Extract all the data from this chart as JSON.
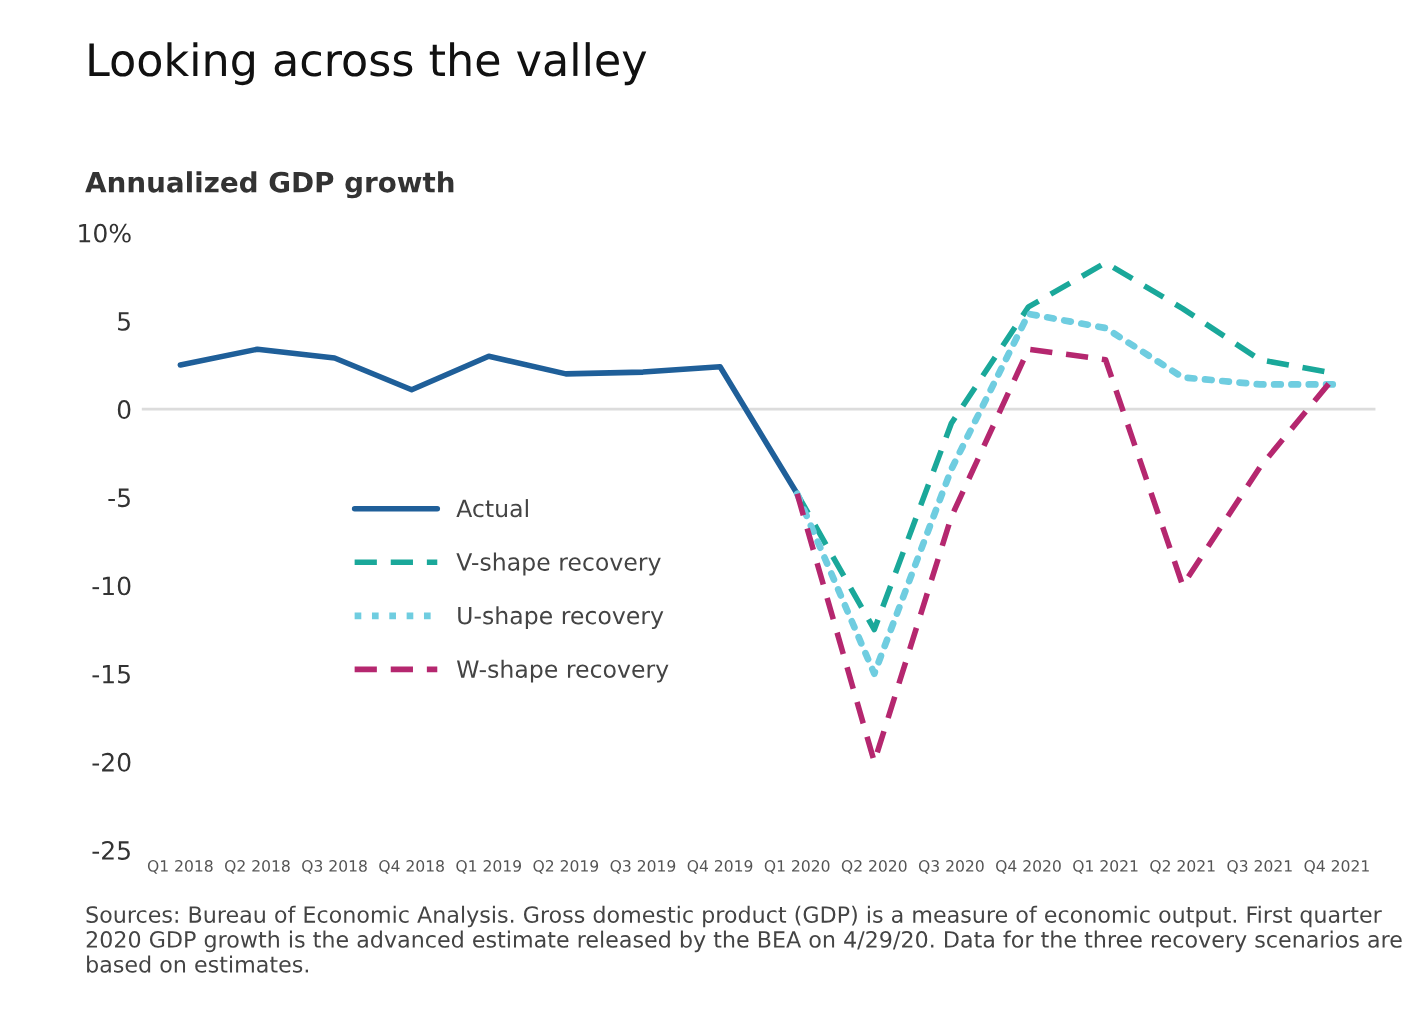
{
  "chart_data": {
    "type": "line",
    "title": "Looking across the valley",
    "subtitle": "Annualized GDP growth",
    "categories": [
      "Q1 2018",
      "Q2 2018",
      "Q3 2018",
      "Q4 2018",
      "Q1 2019",
      "Q2 2019",
      "Q3 2019",
      "Q4 2019",
      "Q1 2020",
      "Q2 2020",
      "Q3 2020",
      "Q4 2020",
      "Q1 2021",
      "Q2 2021",
      "Q3 2021",
      "Q4 2021"
    ],
    "series": [
      {
        "name": "Actual",
        "color": "#1f5f99",
        "line_style": "solid",
        "values": [
          2.5,
          3.4,
          2.9,
          1.1,
          3.0,
          2.0,
          2.1,
          2.4,
          -4.8,
          null,
          null,
          null,
          null,
          null,
          null,
          null
        ]
      },
      {
        "name": "V-shape recovery",
        "color": "#1aa89a",
        "line_style": "dashed",
        "values": [
          null,
          null,
          null,
          null,
          null,
          null,
          null,
          null,
          -4.8,
          -12.5,
          -0.8,
          5.8,
          8.3,
          5.7,
          2.8,
          2.0
        ]
      },
      {
        "name": "U-shape recovery",
        "color": "#6fcde0",
        "line_style": "dotted",
        "values": [
          null,
          null,
          null,
          null,
          null,
          null,
          null,
          null,
          -4.8,
          -15.0,
          -3.4,
          5.4,
          4.6,
          1.8,
          1.4,
          1.4
        ]
      },
      {
        "name": "W-shape recovery",
        "color": "#b5276f",
        "line_style": "dashed",
        "values": [
          null,
          null,
          null,
          null,
          null,
          null,
          null,
          null,
          -4.8,
          -20.0,
          -6.1,
          3.4,
          2.8,
          -10.0,
          -3.3,
          2.0
        ]
      }
    ],
    "ylim": [
      -25,
      10
    ],
    "yticks": [
      {
        "value": 10,
        "label": "10%"
      },
      5,
      0,
      -5,
      -10,
      -15,
      -20,
      -25
    ],
    "ref_lines": [
      {
        "axis": "y",
        "value": 0,
        "color": "#dcdcdc"
      }
    ],
    "grid": false,
    "legend": "center",
    "annotations": [
      "Sources: Bureau of Economic Analysis. Gross domestic product (GDP) is a measure of economic output. First quarter 2020 GDP growth is the advanced estimate released by the BEA on 4/29/20. Data for the three recovery scenarios are based on estimates."
    ]
  }
}
